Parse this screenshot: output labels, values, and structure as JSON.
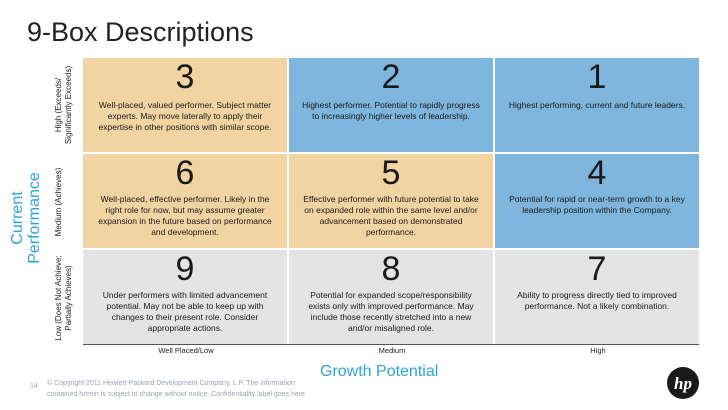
{
  "title": "9-Box Descriptions",
  "y_axis": {
    "title_line1": "Current",
    "title_line2": "Performance"
  },
  "x_axis": {
    "title": "Growth Potential"
  },
  "rows": [
    {
      "label": "High (Exceeds/ Significantly Exceeds)"
    },
    {
      "label": "Medium (Achieves)"
    },
    {
      "label": "Low (Does Not Achieve; Partially Achieves)"
    }
  ],
  "columns": [
    {
      "label": "Well Placed/Low"
    },
    {
      "label": "Medium"
    },
    {
      "label": "High"
    }
  ],
  "boxes": [
    [
      {
        "number": "3",
        "text": "Well-placed, valued performer. Subject matter experts. May move laterally to apply their expertise in other positions with similar scope.",
        "color": "#f2d3a2"
      },
      {
        "number": "2",
        "text": "Highest performer. Potential to rapidly progress to increasingly higher levels of leadership.",
        "color": "#7fb6dd"
      },
      {
        "number": "1",
        "text": "Highest performing, current and future leaders.",
        "color": "#7fb6dd"
      }
    ],
    [
      {
        "number": "6",
        "text": "Well-placed, effective performer. Likely in the right role for now, but may assume greater expansion in the future based on performance and development.",
        "color": "#f2d3a2"
      },
      {
        "number": "5",
        "text": "Effective performer with future potential to take on expanded role within the same level and/or advancement based on demonstrated performance.",
        "color": "#f2d3a2"
      },
      {
        "number": "4",
        "text": "Potential for rapid or near-term growth to a key leadership position within the Company.",
        "color": "#7fb6dd"
      }
    ],
    [
      {
        "number": "9",
        "text": "Under performers with limited advancement potential. May not be able  to keep up with changes to their present role. Consider appropriate actions.",
        "color": "#e4e4e4"
      },
      {
        "number": "8",
        "text": "Potential for expanded scope/responsibility exists only with improved performance. May include those recently stretched into a new and/or misaligned role.",
        "color": "#e4e4e4"
      },
      {
        "number": "7",
        "text": "Ability to progress directly tied to improved performance. Not a likely combination.",
        "color": "#e4e4e4"
      }
    ]
  ],
  "footer": {
    "page_number": "14",
    "copyright": "© Copyright 2011 Hewlett-Packard Development Company, L.P.  The information contained herein is subject to change without notice. Confidentiality label goes here",
    "logo_text": "hp"
  }
}
